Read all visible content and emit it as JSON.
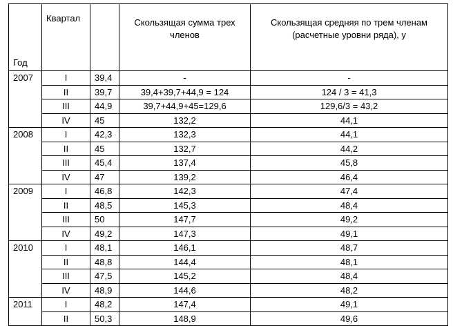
{
  "header": {
    "year": "Год",
    "quarter": "Квартал",
    "sum": "Скользящая сумма трех членов",
    "average": "Скользящая средняя по трем членам (расчетные уровни ряда), у"
  },
  "groups": [
    {
      "year": "2007",
      "rows": [
        {
          "quarter": "I",
          "value": "39,4",
          "sum": "-",
          "average": "-"
        },
        {
          "quarter": "II",
          "value": "39,7",
          "sum": "39,4+39,7+44,9 = 124",
          "average": "124 / 3 = 41,3"
        },
        {
          "quarter": "III",
          "value": "44,9",
          "sum": "39,7+44,9+45=129,6",
          "average": "129,6/3 = 43,2"
        },
        {
          "quarter": "IV",
          "value": "45",
          "sum": "132,2",
          "average": "44,1"
        }
      ]
    },
    {
      "year": "2008",
      "rows": [
        {
          "quarter": "I",
          "value": "42,3",
          "sum": "132,3",
          "average": "44,1"
        },
        {
          "quarter": "II",
          "value": "45",
          "sum": "132,7",
          "average": "44,2"
        },
        {
          "quarter": "III",
          "value": "45,4",
          "sum": "137,4",
          "average": "45,8"
        },
        {
          "quarter": "IV",
          "value": "47",
          "sum": "139,2",
          "average": "46,4"
        }
      ]
    },
    {
      "year": "2009",
      "rows": [
        {
          "quarter": "I",
          "value": "46,8",
          "sum": "142,3",
          "average": "47,4"
        },
        {
          "quarter": "II",
          "value": "48,5",
          "sum": "145,3",
          "average": "48,4"
        },
        {
          "quarter": "III",
          "value": "50",
          "sum": "147,7",
          "average": "49,2"
        },
        {
          "quarter": "IV",
          "value": "49,2",
          "sum": "147,3",
          "average": "49,1"
        }
      ]
    },
    {
      "year": "2010",
      "rows": [
        {
          "quarter": "I",
          "value": "48,1",
          "sum": "146,1",
          "average": "48,7"
        },
        {
          "quarter": "II",
          "value": "48,8",
          "sum": "144,4",
          "average": "48,1"
        },
        {
          "quarter": "III",
          "value": "47,5",
          "sum": "145,2",
          "average": "48,4"
        },
        {
          "quarter": "IV",
          "value": "48,9",
          "sum": "144,6",
          "average": "48,2"
        }
      ]
    },
    {
      "year": "2011",
      "rows": [
        {
          "quarter": "I",
          "value": "48,2",
          "sum": "147,4",
          "average": "49,1"
        },
        {
          "quarter": "II",
          "value": "50,3",
          "sum": "148,9",
          "average": "49,6"
        }
      ]
    }
  ]
}
